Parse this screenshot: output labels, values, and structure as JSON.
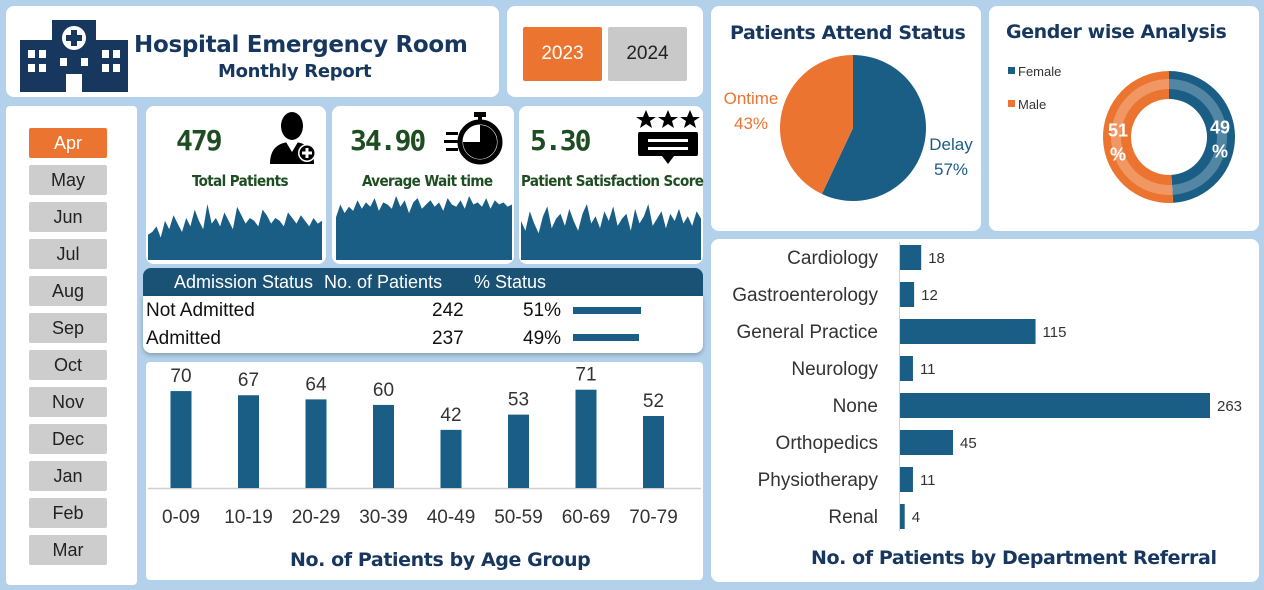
{
  "header": {
    "title": "Hospital Emergency Room",
    "subtitle": "Monthly Report"
  },
  "years": [
    {
      "label": "2023",
      "active": true
    },
    {
      "label": "2024",
      "active": false
    }
  ],
  "months": [
    {
      "label": "Apr",
      "active": true
    },
    {
      "label": "May",
      "active": false
    },
    {
      "label": "Jun",
      "active": false
    },
    {
      "label": "Jul",
      "active": false
    },
    {
      "label": "Aug",
      "active": false
    },
    {
      "label": "Sep",
      "active": false
    },
    {
      "label": "Oct",
      "active": false
    },
    {
      "label": "Nov",
      "active": false
    },
    {
      "label": "Dec",
      "active": false
    },
    {
      "label": "Jan",
      "active": false
    },
    {
      "label": "Feb",
      "active": false
    },
    {
      "label": "Mar",
      "active": false
    }
  ],
  "kpis": {
    "total_patients": {
      "value": "479",
      "label": "Total Patients",
      "icon": "doctor-icon"
    },
    "avg_wait": {
      "value": "34.90",
      "label": "Average Wait time",
      "icon": "stopwatch-icon"
    },
    "satisfaction": {
      "value": "5.30",
      "label": "Patient Satisfaction Score",
      "icon": "rating-stars-icon"
    }
  },
  "admission": {
    "headers": [
      "Admission Status",
      "No. of Patients",
      "% Status"
    ],
    "rows": [
      {
        "status": "Not Admitted",
        "patients": "242",
        "pct": "51%",
        "bar_fraction": 0.51
      },
      {
        "status": "Admitted",
        "patients": "237",
        "pct": "49%",
        "bar_fraction": 0.49
      }
    ]
  },
  "colors": {
    "primary": "#1a5e85",
    "accent": "#ec7431",
    "text_dark": "#17375e",
    "kpi_green": "#1e4d22"
  },
  "chart_data": [
    {
      "id": "sparkline-total-patients",
      "type": "area",
      "values": [
        9,
        10,
        12,
        8,
        14,
        11,
        16,
        13,
        10,
        15,
        12,
        18,
        14,
        11,
        20,
        13,
        15,
        12,
        17,
        14,
        11,
        19,
        16,
        13,
        15,
        14,
        12,
        18,
        16,
        13,
        15,
        14,
        12,
        17,
        15,
        13,
        16,
        14,
        12,
        15,
        13,
        14
      ]
    },
    {
      "id": "sparkline-wait-time",
      "type": "area",
      "values": [
        20,
        26,
        22,
        25,
        23,
        28,
        24,
        27,
        25,
        29,
        23,
        27,
        26,
        24,
        30,
        25,
        28,
        22,
        27,
        29,
        24,
        26,
        28,
        25,
        27,
        23,
        29,
        26,
        25,
        28,
        24,
        30,
        26,
        27,
        25,
        29,
        24,
        28,
        26,
        27,
        25,
        26
      ]
    },
    {
      "id": "sparkline-satisfaction",
      "type": "area",
      "values": [
        16,
        12,
        20,
        15,
        11,
        18,
        22,
        13,
        17,
        19,
        14,
        21,
        16,
        12,
        19,
        23,
        15,
        18,
        13,
        20,
        16,
        22,
        14,
        17,
        19,
        12,
        21,
        15,
        18,
        23,
        14,
        17,
        20,
        13,
        19,
        16,
        21,
        15,
        18,
        14,
        20,
        17
      ]
    },
    {
      "id": "attend-status",
      "type": "pie",
      "title": "Patients Attend Status",
      "slices": [
        {
          "name": "Delay",
          "value": 57,
          "label": "57%",
          "color": "#1a5e85"
        },
        {
          "name": "Ontime",
          "value": 43,
          "label": "43%",
          "color": "#ec7431"
        }
      ]
    },
    {
      "id": "gender",
      "type": "pie",
      "title": "Gender wise Analysis",
      "slices": [
        {
          "name": "Female",
          "value": 49,
          "label": "49",
          "color": "#1a5e85"
        },
        {
          "name": "Male",
          "value": 51,
          "label": "51",
          "color": "#ec7431"
        }
      ],
      "legend": [
        "Female",
        "Male"
      ],
      "legend_position": "left"
    },
    {
      "id": "age-group",
      "type": "bar",
      "title": "No. of Patients by Age Group",
      "categories": [
        "0-09",
        "10-19",
        "20-29",
        "30-39",
        "40-49",
        "50-59",
        "60-69",
        "70-79"
      ],
      "values": [
        70,
        67,
        64,
        60,
        42,
        53,
        71,
        52
      ],
      "ylim": [
        0,
        78
      ]
    },
    {
      "id": "department",
      "type": "bar",
      "orientation": "horizontal",
      "title": "No. of Patients by Department Referral",
      "categories": [
        "Cardiology",
        "Gastroenterology",
        "General Practice",
        "Neurology",
        "None",
        "Orthopedics",
        "Physiotherapy",
        "Renal"
      ],
      "values": [
        18,
        12,
        115,
        11,
        263,
        45,
        11,
        4
      ],
      "xlim": [
        0,
        263
      ]
    }
  ]
}
